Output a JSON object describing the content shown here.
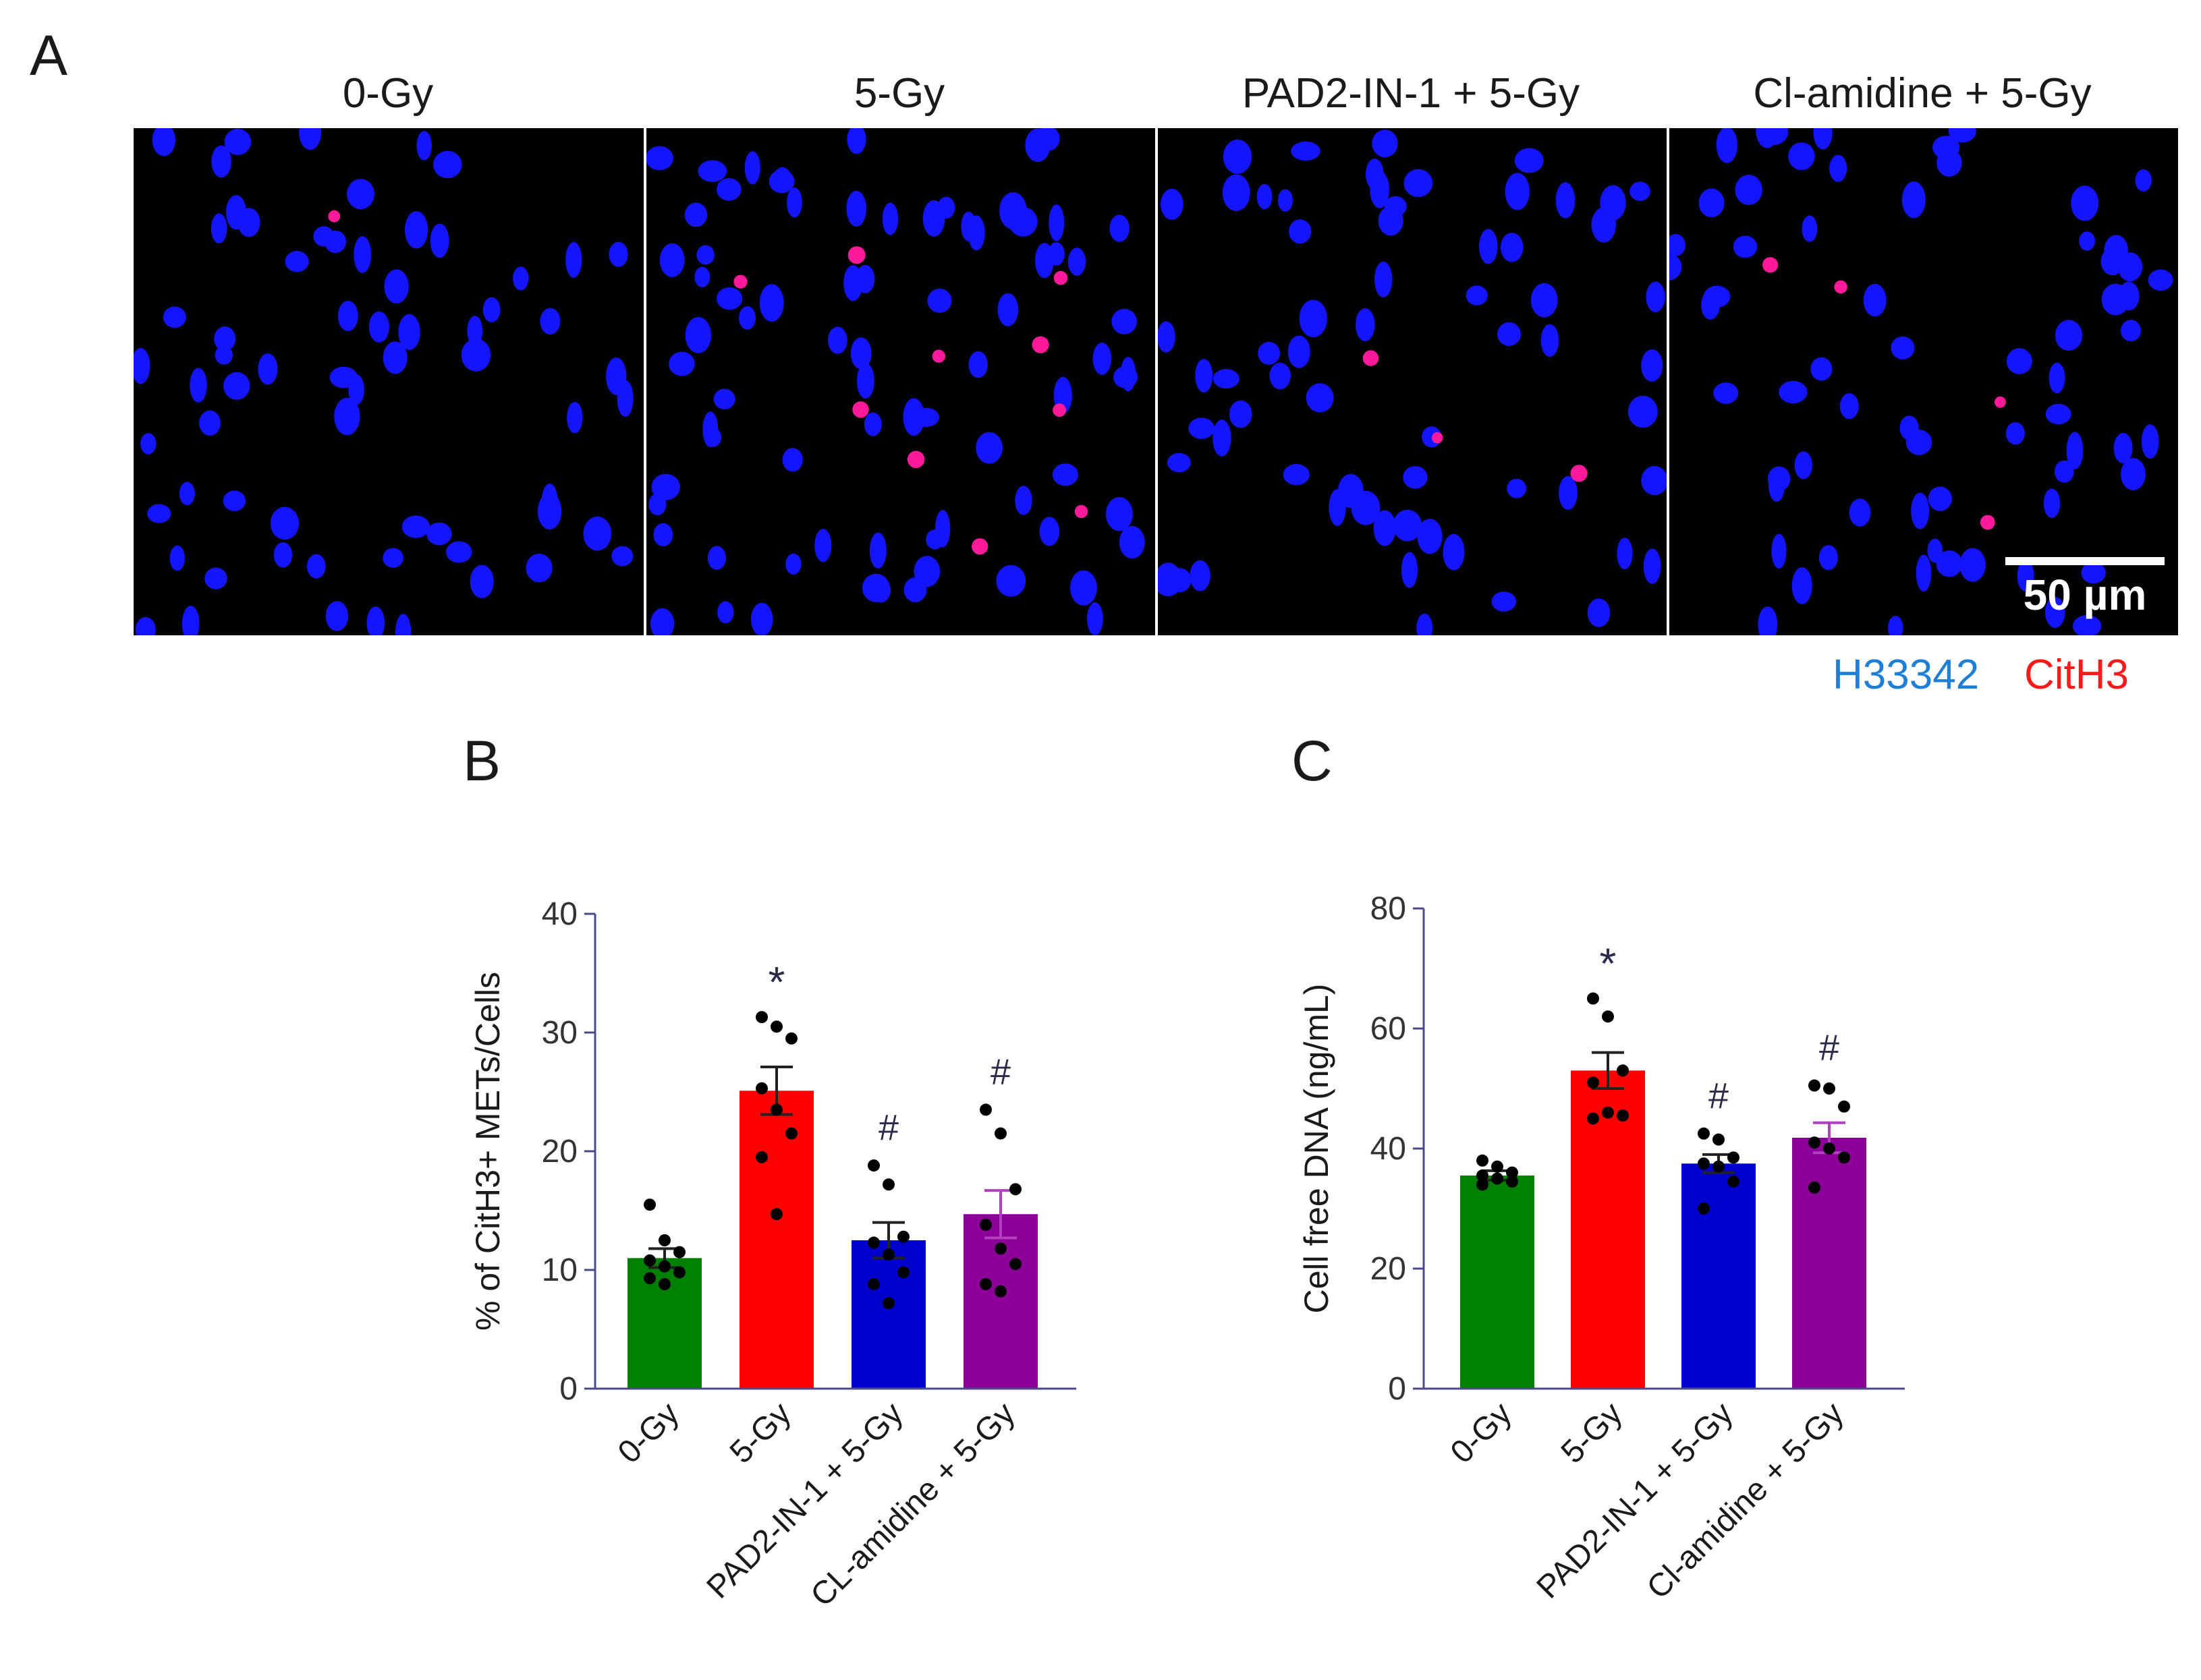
{
  "figure": {
    "panel_a": {
      "letter": "A",
      "images": [
        {
          "title": "0-Gy",
          "red_spots": 1
        },
        {
          "title": "5-Gy",
          "red_spots": 10
        },
        {
          "title": "PAD2-IN-1 + 5-Gy",
          "red_spots": 3
        },
        {
          "title": "Cl-amidine + 5-Gy",
          "red_spots": 4
        }
      ],
      "scale_label": "50 µm",
      "legend": [
        {
          "label": "H33342",
          "color": "#1f7fd6"
        },
        {
          "label": "CitH3",
          "color": "#ff1a1a"
        }
      ],
      "nucleus_color": "#1414ff",
      "spot_color": "#ff1a9c"
    },
    "panel_b": {
      "letter": "B"
    },
    "panel_c": {
      "letter": "C"
    }
  },
  "chart_data": [
    {
      "type": "bar",
      "panel": "B",
      "categories": [
        "0-Gy",
        "5-Gy",
        "PAD2-IN-1 + 5-Gy",
        "CL-amidine + 5-Gy"
      ],
      "values": [
        11.0,
        25.1,
        12.5,
        14.7
      ],
      "errors": [
        0.8,
        2.0,
        1.5,
        2.0
      ],
      "colors": [
        "#008000",
        "#ff0000",
        "#0000cc",
        "#8b0096"
      ],
      "annotations": [
        "",
        "*",
        "#",
        "#"
      ],
      "points": [
        [
          15.5,
          12.5,
          11.5,
          10.8,
          10.3,
          9.8,
          9.3,
          8.8
        ],
        [
          31.3,
          30.5,
          29.5,
          25.3,
          23.5,
          21.5,
          19.5,
          14.7
        ],
        [
          18.8,
          17.2,
          12.8,
          12.3,
          11.3,
          9.8,
          8.8,
          7.2
        ],
        [
          23.5,
          21.5,
          16.8,
          13.8,
          11.8,
          10.5,
          8.8,
          8.2
        ]
      ],
      "ylabel": "% of CitH3+ METs/Cells",
      "ylim": [
        0,
        40
      ],
      "yticks": [
        0,
        10,
        20,
        30,
        40
      ]
    },
    {
      "type": "bar",
      "panel": "C",
      "categories": [
        "0-Gy",
        "5-Gy",
        "PAD2-IN-1 + 5-Gy",
        "Cl-amidine + 5-Gy"
      ],
      "values": [
        35.5,
        53.0,
        37.5,
        41.8
      ],
      "errors": [
        0.8,
        3.0,
        1.5,
        2.5
      ],
      "colors": [
        "#008000",
        "#ff0000",
        "#0000cc",
        "#8b0096"
      ],
      "annotations": [
        "",
        "*",
        "#",
        "#"
      ],
      "points": [
        [
          38.0,
          37.0,
          36.0,
          35.5,
          35.0,
          34.5,
          34.0
        ],
        [
          65.0,
          62.0,
          53.0,
          51.0,
          46.0,
          45.5,
          45.0
        ],
        [
          42.5,
          41.5,
          38.5,
          37.5,
          37.0,
          34.5,
          30.0
        ],
        [
          50.5,
          50.0,
          47.0,
          41.0,
          40.0,
          38.5,
          33.5
        ]
      ],
      "ylabel": "Cell free DNA (ng/mL)",
      "ylim": [
        0,
        80
      ],
      "yticks": [
        0,
        20,
        40,
        60,
        80
      ]
    }
  ]
}
